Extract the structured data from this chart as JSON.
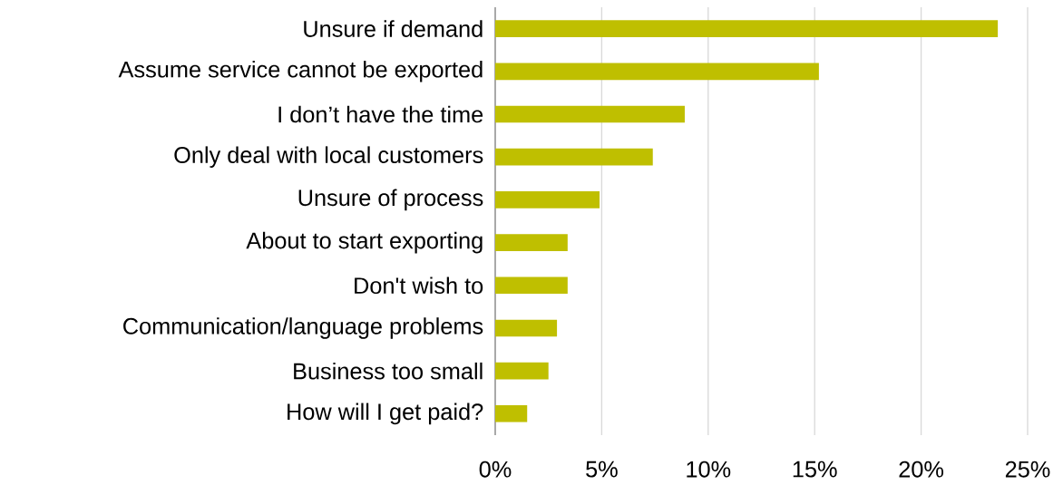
{
  "chart_data": {
    "type": "bar",
    "orientation": "horizontal",
    "categories": [
      "Unsure if demand",
      "Assume service cannot be exported",
      "I don’t have the time",
      "Only deal with local customers",
      "Unsure of process",
      "About to start exporting",
      "Don't wish to",
      "Communication/language problems",
      "Business too small",
      "How will I get paid?"
    ],
    "values": [
      23.6,
      15.2,
      8.9,
      7.4,
      4.9,
      3.4,
      3.4,
      2.9,
      2.5,
      1.5
    ],
    "color": "#bfbf00",
    "xlim": [
      0,
      25
    ],
    "xticks": [
      {
        "value": 0,
        "label": "0%"
      },
      {
        "value": 5,
        "label": "5%"
      },
      {
        "value": 10,
        "label": "10%"
      },
      {
        "value": 15,
        "label": "15%"
      },
      {
        "value": 20,
        "label": "20%"
      },
      {
        "value": 25,
        "label": "25%"
      }
    ],
    "grid": "x"
  }
}
